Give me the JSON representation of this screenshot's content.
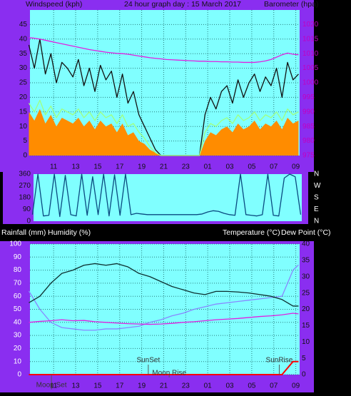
{
  "chart_data": [
    {
      "type": "line",
      "title": "24 hour graph day : 15 March 2017",
      "ylabels": [
        "Windspeed (kph)"
      ],
      "y2labels": [
        "Barometer (hpa)"
      ],
      "x": [
        8.75,
        9.25,
        9.75,
        10.25,
        10.75,
        11.25,
        11.75,
        12.25,
        12.75,
        13.25,
        13.75,
        14.25,
        14.75,
        15.25,
        15.75,
        16.25,
        16.75,
        17.25,
        17.75,
        18.25,
        18.75,
        19.25,
        19.75,
        20.25,
        20.75,
        21.25,
        21.75,
        22.25,
        22.75,
        23.25,
        23.75,
        24.25,
        24.75,
        25.25,
        25.75,
        26.25,
        26.75,
        27.25,
        27.75,
        28.25,
        28.75,
        29.25,
        29.75,
        30.25,
        30.75,
        31.25,
        31.75,
        32.25,
        32.75,
        33.25
      ],
      "xlim": [
        8.85,
        33.35
      ],
      "xticks": [
        11,
        13,
        15,
        17,
        19,
        21,
        23,
        {
          "value": 25,
          "label": "01"
        },
        {
          "value": 27,
          "label": "03"
        },
        {
          "value": 29,
          "label": "05"
        },
        {
          "value": 31,
          "label": "07"
        },
        {
          "value": 33,
          "label": "09"
        }
      ],
      "ylim": [
        0,
        50
      ],
      "yticks": [
        0,
        5,
        10,
        15,
        20,
        25,
        30,
        35,
        40,
        45
      ],
      "y2lim": [
        975,
        1025
      ],
      "y2ticks": [
        975,
        980,
        985,
        990,
        995,
        1000,
        1005,
        1010,
        1015,
        1020
      ],
      "grid": true,
      "series": [
        {
          "style": "area",
          "color": "#ff8c00",
          "values": [
            15,
            12,
            16,
            11,
            14,
            10,
            13,
            12,
            11,
            13,
            10,
            12,
            9,
            12,
            10,
            11,
            8,
            11,
            7,
            8,
            5,
            4,
            2,
            1,
            0,
            0,
            0,
            0,
            0,
            0,
            0,
            0,
            5,
            8,
            7,
            9,
            10,
            8,
            11,
            9,
            10,
            12,
            9,
            11,
            10,
            12,
            9,
            13,
            11,
            12
          ]
        },
        {
          "style": "line",
          "color": "#111111",
          "values": [
            38,
            30,
            40,
            28,
            35,
            25,
            32,
            30,
            27,
            33,
            24,
            30,
            22,
            31,
            26,
            29,
            20,
            28,
            18,
            22,
            14,
            10,
            6,
            2,
            0,
            0,
            0,
            0,
            0,
            0,
            0,
            0,
            14,
            20,
            16,
            22,
            24,
            18,
            26,
            20,
            25,
            28,
            22,
            27,
            24,
            30,
            20,
            32,
            26,
            28
          ]
        },
        {
          "style": "line",
          "color": "#a0ff80",
          "values": [
            18,
            15,
            19,
            14,
            17,
            13,
            16,
            15,
            14,
            16,
            13,
            15,
            12,
            15,
            13,
            14,
            11,
            14,
            10,
            11,
            8,
            6,
            3,
            1,
            0,
            0,
            0,
            0,
            0,
            0,
            0,
            0,
            8,
            11,
            10,
            12,
            13,
            11,
            14,
            12,
            13,
            15,
            12,
            14,
            13,
            15,
            12,
            16,
            14,
            15
          ]
        },
        {
          "style": "line",
          "color": "#e020e0",
          "axis": "y2",
          "values": [
            1015.5,
            1015.3,
            1015,
            1014.6,
            1014.2,
            1013.8,
            1013.4,
            1013,
            1012.6,
            1012.2,
            1011.8,
            1011.4,
            1011.1,
            1010.8,
            1010.5,
            1010.3,
            1010.1,
            1010,
            1009.8,
            1009.5,
            1009.2,
            1008.9,
            1008.6,
            1008.4,
            1008.2,
            1008,
            1007.9,
            1007.8,
            1007.7,
            1007.6,
            1007.5,
            1007.4,
            1007.4,
            1007.3,
            1007.3,
            1007.2,
            1007.2,
            1007.1,
            1007.1,
            1007,
            1007,
            1007,
            1007.2,
            1007.5,
            1008,
            1008.8,
            1009.6,
            1010.2,
            1009.8,
            1009.6
          ]
        }
      ]
    },
    {
      "type": "line",
      "x": [
        8.75,
        9.25,
        9.75,
        10.25,
        10.75,
        11.25,
        11.75,
        12.25,
        12.75,
        13.25,
        13.75,
        14.25,
        14.75,
        15.25,
        15.75,
        16.25,
        16.75,
        17.25,
        17.75,
        18.25,
        18.75,
        19.25,
        19.75,
        20.25,
        20.75,
        21.25,
        21.75,
        22.25,
        22.75,
        23.25,
        23.75,
        24.25,
        24.75,
        25.25,
        25.75,
        26.25,
        26.75,
        27.25,
        27.75,
        28.25,
        28.75,
        29.25,
        29.75,
        30.25,
        30.75,
        31.25,
        31.75,
        32.25,
        32.75,
        33.25
      ],
      "xlim": [
        8.85,
        33.35
      ],
      "ylim": [
        0,
        360
      ],
      "yticks": [
        0,
        90,
        180,
        270,
        360
      ],
      "y2lim": [
        0,
        360
      ],
      "y2ticks": [
        {
          "value": 360,
          "label": "N"
        },
        {
          "value": 270,
          "label": "W"
        },
        {
          "value": 180,
          "label": "S"
        },
        {
          "value": 90,
          "label": "E"
        },
        {
          "value": 0,
          "label": "N"
        }
      ],
      "grid": false,
      "series": [
        {
          "style": "line",
          "color": "#0a4a80",
          "values": [
            50,
            360,
            40,
            45,
            360,
            35,
            350,
            50,
            40,
            360,
            45,
            340,
            50,
            360,
            40,
            355,
            45,
            360,
            50,
            60,
            55,
            50,
            50,
            50,
            50,
            50,
            50,
            50,
            50,
            50,
            50,
            55,
            70,
            80,
            75,
            60,
            50,
            45,
            360,
            50,
            45,
            40,
            50,
            360,
            45,
            40,
            330,
            360,
            340,
            50
          ]
        }
      ]
    },
    {
      "type": "line",
      "ylabels": [
        "Rainfall (mm)",
        "Humidity (%)"
      ],
      "y2labels": [
        "Temperature (°C)",
        "Dew Point (°C)"
      ],
      "x": [
        8.75,
        9.75,
        10.75,
        11.75,
        12.75,
        13.75,
        14.75,
        15.75,
        16.75,
        17.75,
        18.75,
        19.75,
        20.75,
        21.75,
        22.75,
        23.75,
        24.75,
        25.75,
        26.75,
        27.75,
        28.75,
        29.75,
        30.75,
        31.75,
        32.75,
        33.25
      ],
      "xlim": [
        8.85,
        33.35
      ],
      "xticks": [
        11,
        13,
        15,
        17,
        19,
        21,
        23,
        {
          "value": 25,
          "label": "01"
        },
        {
          "value": 27,
          "label": "03"
        },
        {
          "value": 29,
          "label": "05"
        },
        {
          "value": 31,
          "label": "07"
        },
        {
          "value": 33,
          "label": "09"
        }
      ],
      "ylim": [
        0,
        100
      ],
      "yticks": [
        0,
        10,
        20,
        30,
        40,
        50,
        60,
        70,
        80,
        90,
        100
      ],
      "y2lim": [
        0,
        40
      ],
      "y2ticks": [
        0,
        5,
        10,
        15,
        20,
        25,
        30,
        35,
        40
      ],
      "grid": true,
      "annotations": [
        {
          "text": "SunSet",
          "x": 19.6
        },
        {
          "text": "SunRise",
          "x": 31.5
        },
        {
          "text": "Moon Rise",
          "x": 21.5
        },
        {
          "text": "Moon Set",
          "x": 10.8
        }
      ],
      "series": [
        {
          "style": "line",
          "color": "#8888ff",
          "values": [
            64,
            50,
            40,
            36,
            35,
            34,
            34,
            35,
            35,
            36,
            37,
            40,
            42,
            45,
            47,
            50,
            52,
            54,
            55,
            56,
            57,
            58,
            59,
            60,
            80,
            84
          ]
        },
        {
          "style": "line",
          "color": "#e020e0",
          "axis": "y2",
          "values": [
            16,
            16.3,
            16.5,
            16.8,
            16.5,
            16.6,
            16.2,
            16,
            15.8,
            15.6,
            15.5,
            15.4,
            15.5,
            15.7,
            16,
            16.2,
            16.5,
            16.8,
            17,
            17.2,
            17.5,
            17.8,
            18,
            18.3,
            18.8,
            18.6
          ]
        },
        {
          "style": "line",
          "color": "#0d2f2f",
          "axis": "y2",
          "values": [
            22,
            24,
            28,
            31,
            32,
            33.5,
            34,
            33.5,
            34,
            33,
            31,
            30,
            28.5,
            27,
            26,
            25,
            24.5,
            25.5,
            25.5,
            25.3,
            25,
            24.5,
            24,
            23,
            21,
            21
          ]
        },
        {
          "style": "line",
          "color": "#ff0000",
          "axis": "y2",
          "values": [
            0,
            0,
            0,
            0,
            0,
            0,
            0,
            0,
            0,
            0,
            0,
            0,
            0,
            0,
            0,
            0,
            0,
            0,
            0,
            0,
            0,
            0,
            0,
            0,
            4,
            4
          ]
        }
      ]
    }
  ]
}
